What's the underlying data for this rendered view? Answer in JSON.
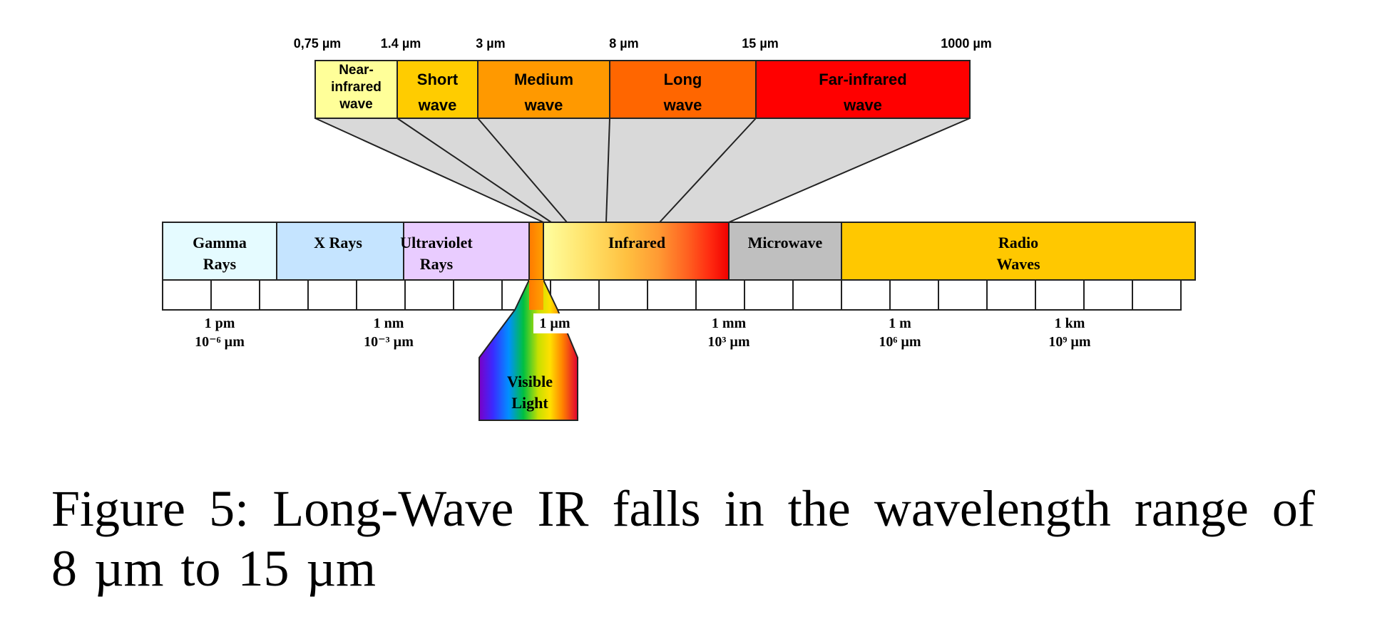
{
  "wavelength_labels": [
    "0,75 µm",
    "1.4 µm",
    "3 µm",
    "8 µm",
    "15 µm",
    "1000 µm"
  ],
  "ir_subbands": [
    {
      "lines": [
        "Near-",
        "infrared",
        "wave"
      ],
      "color": "#FFFF99"
    },
    {
      "lines": [
        "Short",
        "wave"
      ],
      "color": "#FFCC00"
    },
    {
      "lines": [
        "Medium",
        "wave"
      ],
      "color": "#FF9900"
    },
    {
      "lines": [
        "Long",
        "wave"
      ],
      "color": "#FF6600"
    },
    {
      "lines": [
        "Far-infrared",
        "wave"
      ],
      "color": "#FF0000"
    }
  ],
  "spectrum_bands": [
    {
      "lines": [
        "Gamma",
        "Rays"
      ],
      "color": "#E5FBFF"
    },
    {
      "lines": [
        "X Rays"
      ],
      "color": "#C5E4FF"
    },
    {
      "lines": [
        "Ultraviolet",
        "Rays"
      ],
      "color": "#E9CCFF"
    },
    {
      "lines": [
        "Infrared"
      ],
      "color": "#FFD24D"
    },
    {
      "lines": [
        "Microwave"
      ],
      "color": "#BFBFBF"
    },
    {
      "lines": [
        "Radio",
        "Waves"
      ],
      "color": "#FFC800"
    }
  ],
  "scale_labels": [
    {
      "lines": [
        "1 pm",
        "10⁻⁶ µm"
      ]
    },
    {
      "lines": [
        "1 nm",
        "10⁻³ µm"
      ]
    },
    {
      "lines": [
        "1 µm"
      ]
    },
    {
      "lines": [
        "1 mm",
        "10³ µm"
      ]
    },
    {
      "lines": [
        "1 m",
        "10⁶ µm"
      ]
    },
    {
      "lines": [
        "1 km",
        "10⁹ µm"
      ]
    }
  ],
  "visible_light": {
    "lines": [
      "Visible",
      "Light"
    ]
  },
  "caption": {
    "words_line1": [
      "Figure",
      "5:",
      "Long-Wave",
      "IR",
      "falls",
      "in",
      "the",
      "wavelength",
      "range",
      "of"
    ],
    "line2": "8 µm to 15 µm"
  }
}
